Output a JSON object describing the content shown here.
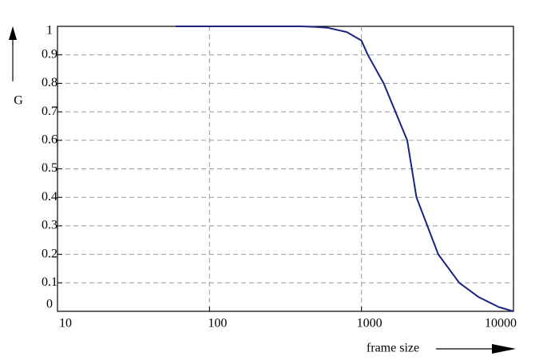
{
  "chart_data": {
    "type": "line",
    "x_label": "frame size",
    "y_label": "G",
    "xscale": "log",
    "x": [
      60,
      100,
      200,
      300,
      400,
      500,
      600,
      800,
      1000,
      1100,
      1400,
      2000,
      2300,
      3200,
      4400,
      5900,
      8000,
      10000
    ],
    "series": [
      {
        "name": "G",
        "color": "#1a2380",
        "values": [
          1,
          1,
          1,
          1,
          1,
          0.998,
          0.995,
          0.98,
          0.95,
          0.9,
          0.8,
          0.6,
          0.4,
          0.2,
          0.1,
          0.05,
          0.015,
          0
        ]
      }
    ],
    "xlim": [
      10,
      10000
    ],
    "ylim": [
      0,
      1
    ],
    "xticks": [
      10,
      100,
      1000,
      10000
    ],
    "yticks": [
      0,
      0.1,
      0.2,
      0.3,
      0.4,
      0.5,
      0.6,
      0.7,
      0.8,
      0.9,
      1
    ],
    "grid": true
  }
}
